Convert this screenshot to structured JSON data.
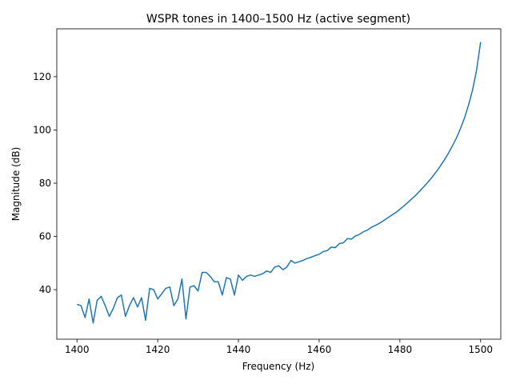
{
  "chart_data": {
    "type": "line",
    "title": "WSPR tones in 1400–1500 Hz (active segment)",
    "x_label": "Frequency (Hz)",
    "y_label": "Magnitude (dB)",
    "x": [
      1400,
      1401,
      1402,
      1403,
      1404,
      1405,
      1406,
      1407,
      1408,
      1409,
      1410,
      1411,
      1412,
      1413,
      1414,
      1415,
      1416,
      1417,
      1418,
      1419,
      1420,
      1421,
      1422,
      1423,
      1424,
      1425,
      1426,
      1427,
      1428,
      1429,
      1430,
      1431,
      1432,
      1433,
      1434,
      1435,
      1436,
      1437,
      1438,
      1439,
      1440,
      1441,
      1442,
      1443,
      1444,
      1445,
      1446,
      1447,
      1448,
      1449,
      1450,
      1451,
      1452,
      1453,
      1454,
      1455,
      1456,
      1457,
      1458,
      1459,
      1460,
      1461,
      1462,
      1463,
      1464,
      1465,
      1466,
      1467,
      1468,
      1469,
      1470,
      1471,
      1472,
      1473,
      1474,
      1475,
      1476,
      1477,
      1478,
      1479,
      1480,
      1481,
      1482,
      1483,
      1484,
      1485,
      1486,
      1487,
      1488,
      1489,
      1490,
      1491,
      1492,
      1493,
      1494,
      1495,
      1496,
      1497,
      1498,
      1499,
      1500
    ],
    "series": [
      {
        "color": "#1f77b4",
        "values": [
          34.5,
          34,
          29.5,
          36.5,
          27.5,
          36,
          37.5,
          34,
          30,
          33,
          37,
          38,
          30,
          34,
          37,
          33.5,
          37,
          28.5,
          40.5,
          40,
          36.5,
          38.5,
          40.5,
          41,
          34,
          36.5,
          44,
          29,
          41,
          41.5,
          39.5,
          46.5,
          46.5,
          45,
          43,
          43,
          38,
          44.5,
          44,
          38,
          45.5,
          43.5,
          45,
          45.5,
          45,
          45.5,
          46,
          47,
          46.5,
          48.5,
          49,
          47.5,
          48.5,
          51,
          50,
          50.5,
          51,
          51.7,
          52.2,
          52.8,
          53.3,
          54.3,
          54.7,
          56,
          55.8,
          57.3,
          57.6,
          59.2,
          59,
          60.2,
          60.8,
          61.8,
          62.4,
          63.5,
          64.2,
          65,
          66,
          67,
          68,
          69,
          70.2,
          71.5,
          72.8,
          74.2,
          75.6,
          77.2,
          78.8,
          80.5,
          82.3,
          84.3,
          86.4,
          88.7,
          91.2,
          94,
          97,
          100.5,
          104.5,
          109.3,
          115,
          122.5,
          133
        ]
      }
    ],
    "xlim": [
      1395,
      1505
    ],
    "ylim": [
      21.4,
      138
    ],
    "xticks": [
      1400,
      1420,
      1440,
      1460,
      1480,
      1500
    ],
    "yticks": [
      40,
      60,
      80,
      100,
      120
    ]
  }
}
